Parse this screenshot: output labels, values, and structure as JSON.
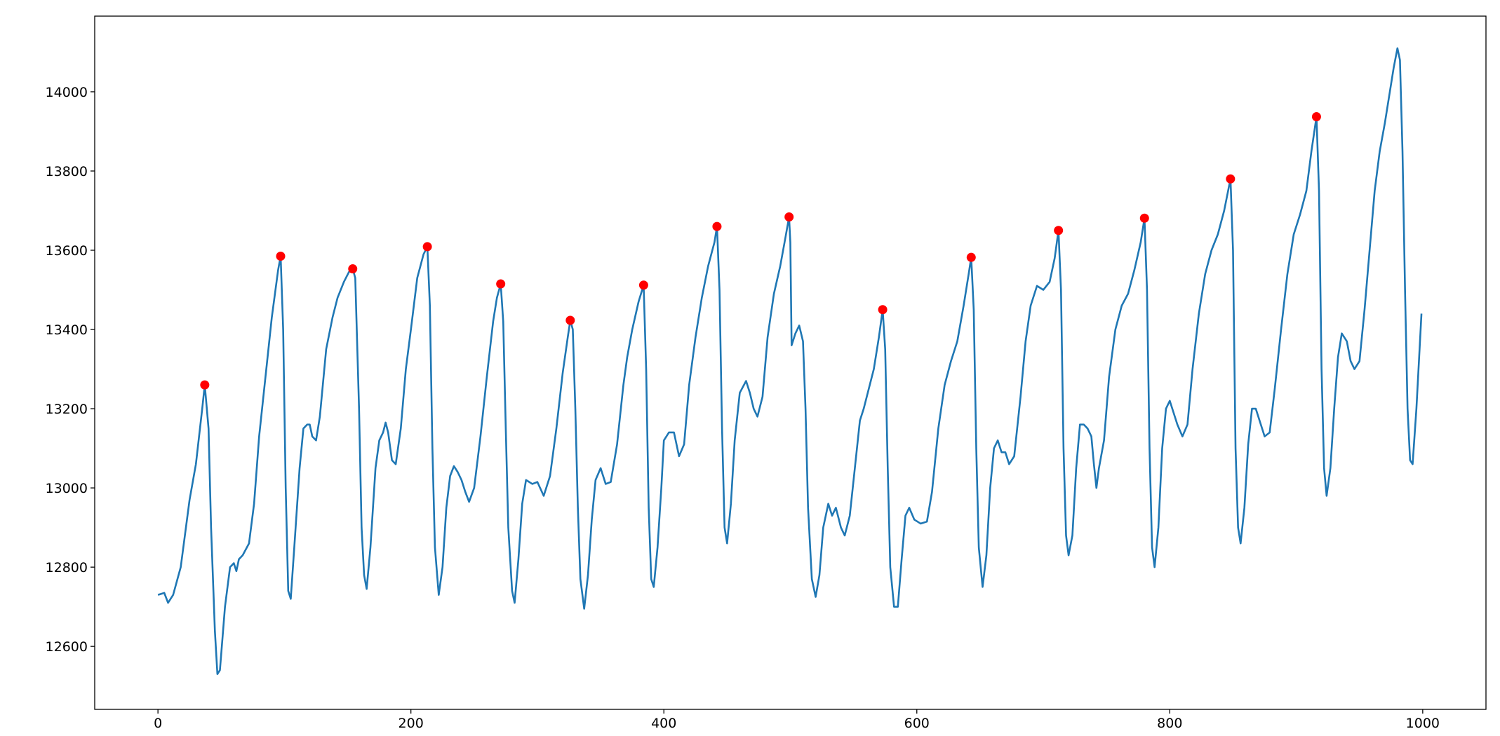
{
  "chart_data": {
    "type": "line",
    "x": [
      0,
      5,
      8,
      12,
      18,
      25,
      30,
      35,
      37,
      40,
      42,
      45,
      47,
      49,
      53,
      57,
      60,
      62,
      64,
      67,
      72,
      76,
      80,
      85,
      90,
      95,
      97,
      99,
      101,
      103,
      105,
      108,
      112,
      115,
      118,
      120,
      122,
      125,
      128,
      133,
      138,
      142,
      147,
      151,
      154,
      156,
      159,
      161,
      163,
      165,
      168,
      172,
      175,
      178,
      180,
      182,
      185,
      188,
      192,
      196,
      200,
      205,
      210,
      213,
      215,
      217,
      219,
      222,
      225,
      228,
      231,
      234,
      237,
      240,
      243,
      246,
      250,
      255,
      260,
      265,
      268,
      271,
      273,
      275,
      277,
      280,
      282,
      285,
      288,
      291,
      296,
      300,
      305,
      310,
      315,
      320,
      324,
      326,
      328,
      330,
      332,
      334,
      337,
      340,
      343,
      346,
      350,
      354,
      358,
      363,
      368,
      371,
      375,
      380,
      384,
      386,
      388,
      390,
      392,
      395,
      398,
      400,
      404,
      408,
      412,
      416,
      420,
      425,
      430,
      435,
      440,
      442,
      444,
      446,
      448,
      450,
      453,
      456,
      460,
      465,
      468,
      471,
      474,
      478,
      482,
      487,
      492,
      496,
      499,
      500,
      501,
      504,
      507,
      510,
      512,
      514,
      517,
      520,
      523,
      526,
      530,
      533,
      536,
      540,
      543,
      547,
      551,
      555,
      558,
      562,
      566,
      570,
      573,
      575,
      577,
      579,
      582,
      585,
      588,
      591,
      594,
      598,
      603,
      608,
      612,
      617,
      622,
      627,
      632,
      637,
      641,
      643,
      645,
      647,
      649,
      652,
      655,
      658,
      661,
      664,
      667,
      670,
      673,
      677,
      682,
      686,
      690,
      695,
      700,
      705,
      709,
      712,
      714,
      716,
      718,
      720,
      723,
      726,
      729,
      732,
      735,
      738,
      740,
      742,
      744,
      748,
      752,
      757,
      762,
      767,
      772,
      777,
      780,
      782,
      784,
      786,
      788,
      791,
      794,
      797,
      800,
      803,
      806,
      810,
      814,
      818,
      823,
      828,
      833,
      838,
      843,
      848,
      850,
      852,
      854,
      856,
      859,
      862,
      865,
      868,
      871,
      875,
      879,
      883,
      888,
      893,
      898,
      903,
      908,
      912,
      916,
      918,
      920,
      922,
      924,
      927,
      930,
      933,
      936,
      940,
      943,
      946,
      950,
      954,
      958,
      962,
      966,
      970,
      974,
      977,
      980,
      982,
      984,
      986,
      988,
      990,
      992,
      995,
      998,
      999
    ],
    "series": [
      {
        "color": "#1f77b4",
        "values": [
          12730,
          12735,
          12710,
          12730,
          12800,
          12970,
          13060,
          13200,
          13260,
          13150,
          12900,
          12640,
          12530,
          12540,
          12700,
          12800,
          12810,
          12790,
          12820,
          12830,
          12860,
          12960,
          13130,
          13280,
          13430,
          13550,
          13585,
          13400,
          13000,
          12740,
          12720,
          12860,
          13050,
          13150,
          13160,
          13160,
          13130,
          13120,
          13180,
          13350,
          13430,
          13480,
          13520,
          13545,
          13553,
          13530,
          13200,
          12900,
          12780,
          12745,
          12850,
          13050,
          13120,
          13140,
          13165,
          13140,
          13070,
          13060,
          13150,
          13300,
          13400,
          13530,
          13590,
          13609,
          13460,
          13100,
          12850,
          12730,
          12800,
          12950,
          13030,
          13055,
          13040,
          13020,
          12990,
          12965,
          13000,
          13130,
          13280,
          13420,
          13480,
          13515,
          13420,
          13150,
          12900,
          12740,
          12710,
          12820,
          12960,
          13020,
          13010,
          13015,
          12980,
          13030,
          13150,
          13290,
          13380,
          13423,
          13400,
          13200,
          12950,
          12770,
          12695,
          12780,
          12920,
          13020,
          13050,
          13010,
          13015,
          13110,
          13260,
          13330,
          13400,
          13470,
          13512,
          13300,
          12950,
          12770,
          12750,
          12850,
          13000,
          13120,
          13140,
          13140,
          13080,
          13110,
          13260,
          13380,
          13480,
          13560,
          13620,
          13660,
          13500,
          13150,
          12900,
          12860,
          12960,
          13120,
          13240,
          13270,
          13240,
          13200,
          13180,
          13230,
          13380,
          13490,
          13560,
          13630,
          13684,
          13620,
          13360,
          13390,
          13410,
          13370,
          13200,
          12950,
          12770,
          12725,
          12780,
          12900,
          12960,
          12930,
          12950,
          12900,
          12880,
          12930,
          13050,
          13170,
          13200,
          13250,
          13300,
          13380,
          13450,
          13350,
          13050,
          12800,
          12700,
          12700,
          12820,
          12930,
          12950,
          12920,
          12910,
          12915,
          12990,
          13150,
          13260,
          13320,
          13370,
          13460,
          13540,
          13582,
          13450,
          13100,
          12850,
          12750,
          12830,
          13000,
          13100,
          13120,
          13090,
          13090,
          13060,
          13080,
          13230,
          13370,
          13460,
          13510,
          13500,
          13520,
          13580,
          13650,
          13500,
          13100,
          12880,
          12830,
          12880,
          13050,
          13160,
          13160,
          13150,
          13130,
          13060,
          13000,
          13050,
          13120,
          13280,
          13400,
          13460,
          13490,
          13550,
          13620,
          13681,
          13500,
          13100,
          12850,
          12800,
          12900,
          13100,
          13200,
          13220,
          13190,
          13160,
          13130,
          13160,
          13300,
          13440,
          13540,
          13600,
          13640,
          13700,
          13780,
          13600,
          13100,
          12900,
          12860,
          12950,
          13110,
          13200,
          13200,
          13170,
          13130,
          13140,
          13250,
          13400,
          13540,
          13640,
          13690,
          13750,
          13850,
          13937,
          13750,
          13300,
          13050,
          12980,
          13050,
          13200,
          13330,
          13390,
          13370,
          13320,
          13300,
          13320,
          13450,
          13600,
          13750,
          13850,
          13920,
          14000,
          14060,
          14110,
          14080,
          13850,
          13500,
          13200,
          13070,
          13060,
          13200,
          13380,
          13440
        ]
      }
    ],
    "peaks": {
      "color": "red",
      "x": [
        37,
        97,
        154,
        213,
        271,
        326,
        384,
        442,
        499,
        573,
        643,
        712,
        780,
        848,
        916
      ],
      "values": [
        13260,
        13585,
        13553,
        13609,
        13515,
        13423,
        13512,
        13660,
        13684,
        13450,
        13582,
        13650,
        13681,
        13780,
        13937
      ]
    },
    "xlim": [
      -50,
      1050
    ],
    "ylim": [
      12441,
      14191
    ],
    "xticks": [
      0,
      200,
      400,
      600,
      800,
      1000
    ],
    "yticks": [
      12600,
      12800,
      13000,
      13200,
      13400,
      13600,
      13800,
      14000
    ]
  }
}
